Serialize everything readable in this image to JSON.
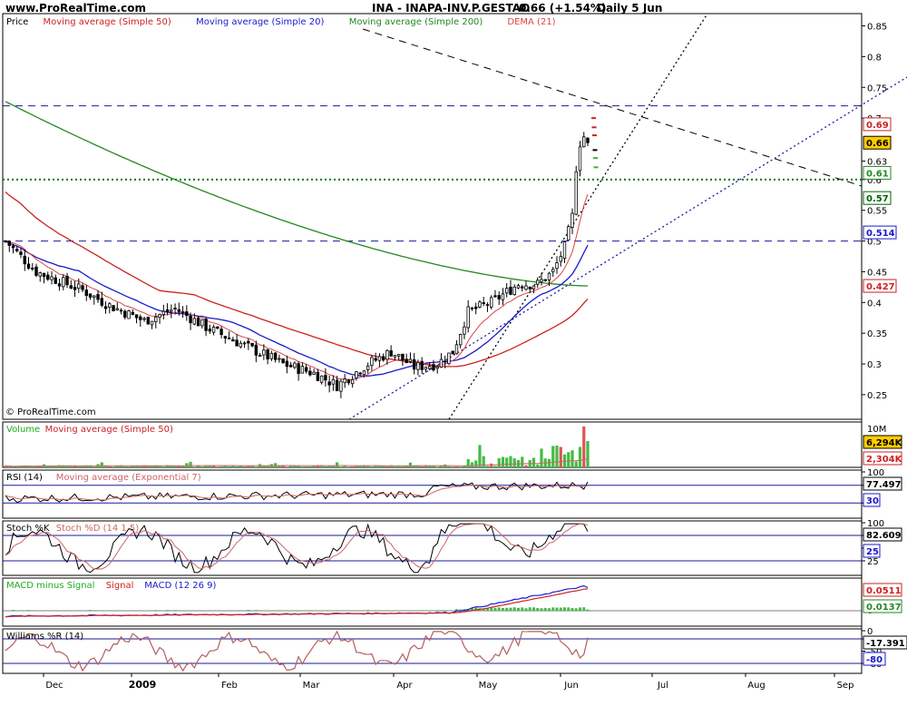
{
  "header": {
    "site": "www.ProRealTime.com",
    "symbol": "INA - INAPA-INV.P.GESTAO",
    "quote": "0.66 (+1.54%)",
    "period": "Daily  5 Jun"
  },
  "watermark": "© ProRealTime.com",
  "colors": {
    "ma50": "#cc2222",
    "ma20": "#1a1acc",
    "ma200": "#228822",
    "dema": "#dd4444",
    "volume": "#44bb44",
    "grid": "#1a1a99",
    "support": "#007700"
  },
  "x_axis": {
    "labels": [
      "Dec",
      "2009",
      "Feb",
      "Mar",
      "Apr",
      "May",
      "Jun",
      "Jul",
      "Aug",
      "Sep"
    ]
  },
  "chart_data": [
    {
      "type": "candlestick",
      "title": "Price",
      "legend": [
        {
          "text": "Price",
          "color": "#000000"
        },
        {
          "text": "Moving average (Simple 50)",
          "color": "#cc2222"
        },
        {
          "text": "Moving average (Simple 20)",
          "color": "#1a1acc"
        },
        {
          "text": "Moving average (Simple 200)",
          "color": "#228822"
        },
        {
          "text": "DEMA (21)",
          "color": "#dd4444"
        }
      ],
      "y_ticks": [
        "0.85",
        "0.8",
        "0.75",
        "0.7",
        "0.63",
        "0.6",
        "0.55",
        "0.5",
        "0.45",
        "0.4",
        "0.35",
        "0.3",
        "0.25"
      ],
      "ylim": [
        0.21,
        0.87
      ],
      "value_tags": [
        {
          "text": "0.69",
          "value": 0.69,
          "color": "#cc2222"
        },
        {
          "text": "0.66",
          "value": 0.66,
          "color": "#000000",
          "bg": "#ffcc00"
        },
        {
          "text": "0.61",
          "value": 0.611,
          "color": "#228822"
        },
        {
          "text": "0.57",
          "value": 0.57,
          "color": "#006600"
        },
        {
          "text": "0.514",
          "value": 0.514,
          "color": "#1a1acc"
        },
        {
          "text": "0.427",
          "value": 0.427,
          "color": "#cc2222"
        }
      ],
      "horizontal_levels": [
        0.72,
        0.6,
        0.5
      ],
      "ma200_start": 0.727,
      "ma200_end": 0.427,
      "last_close": 0.66,
      "change_pct": 1.54
    },
    {
      "type": "bar",
      "title": "Volume",
      "legend": [
        {
          "text": "Volume",
          "color": "#22aa22"
        },
        {
          "text": "Moving average (Simple 50)",
          "color": "#cc2222"
        }
      ],
      "y_ticks": [
        "10M"
      ],
      "value_tags": [
        {
          "text": "6,294K",
          "color": "#000000",
          "bg": "#ffcc00"
        },
        {
          "text": "2,304K",
          "color": "#cc2222"
        }
      ],
      "last_volume": 6294000,
      "avg_volume": 2304000
    },
    {
      "type": "line",
      "title": "RSI (14)",
      "legend": [
        {
          "text": "RSI (14)",
          "color": "#000000"
        },
        {
          "text": "Moving average (Exponential 7)",
          "color": "#cc6666"
        }
      ],
      "y_ticks": [
        "100",
        "70",
        "30"
      ],
      "ylim": [
        0,
        100
      ],
      "levels": [
        70,
        30
      ],
      "last_value": 77.497,
      "value_tags": [
        {
          "text": "77.497",
          "color": "#000000"
        },
        {
          "text": "30",
          "color": "#1a1acc"
        }
      ]
    },
    {
      "type": "line",
      "title": "Stoch %K Stoch %D (14 1 5)",
      "legend": [
        {
          "text": "Stoch %K",
          "color": "#000000"
        },
        {
          "text": "Stoch %D (14 1 5)",
          "color": "#cc6666"
        }
      ],
      "y_ticks": [
        "100",
        "75",
        "50",
        "25"
      ],
      "ylim": [
        0,
        100
      ],
      "levels": [
        75,
        25
      ],
      "last_value": 82.609,
      "value_tags": [
        {
          "text": "82.609",
          "color": "#000000"
        },
        {
          "text": "25",
          "color": "#1a1acc"
        }
      ]
    },
    {
      "type": "line",
      "title": "MACD (12 26 9)",
      "legend": [
        {
          "text": "MACD minus Signal",
          "color": "#22aa22"
        },
        {
          "text": "Signal",
          "color": "#cc2222"
        },
        {
          "text": "MACD (12 26 9)",
          "color": "#1a1acc"
        }
      ],
      "y_ticks": [
        "0"
      ],
      "value_tags": [
        {
          "text": "0.0511",
          "color": "#cc2222"
        },
        {
          "text": "0.0137",
          "color": "#228822"
        }
      ],
      "last_macd": 0.0511,
      "last_hist": 0.0137
    },
    {
      "type": "line",
      "title": "Williams %R (14)",
      "legend": [
        {
          "text": "Williams %R (14)",
          "color": "#000000"
        }
      ],
      "y_ticks": [
        "0",
        "-20",
        "-50",
        "-80"
      ],
      "ylim": [
        -100,
        0
      ],
      "levels": [
        -20,
        -80
      ],
      "last_value": -17.391,
      "value_tags": [
        {
          "text": "-17.391",
          "color": "#000000"
        },
        {
          "text": "-80",
          "color": "#1a1acc"
        }
      ]
    }
  ]
}
